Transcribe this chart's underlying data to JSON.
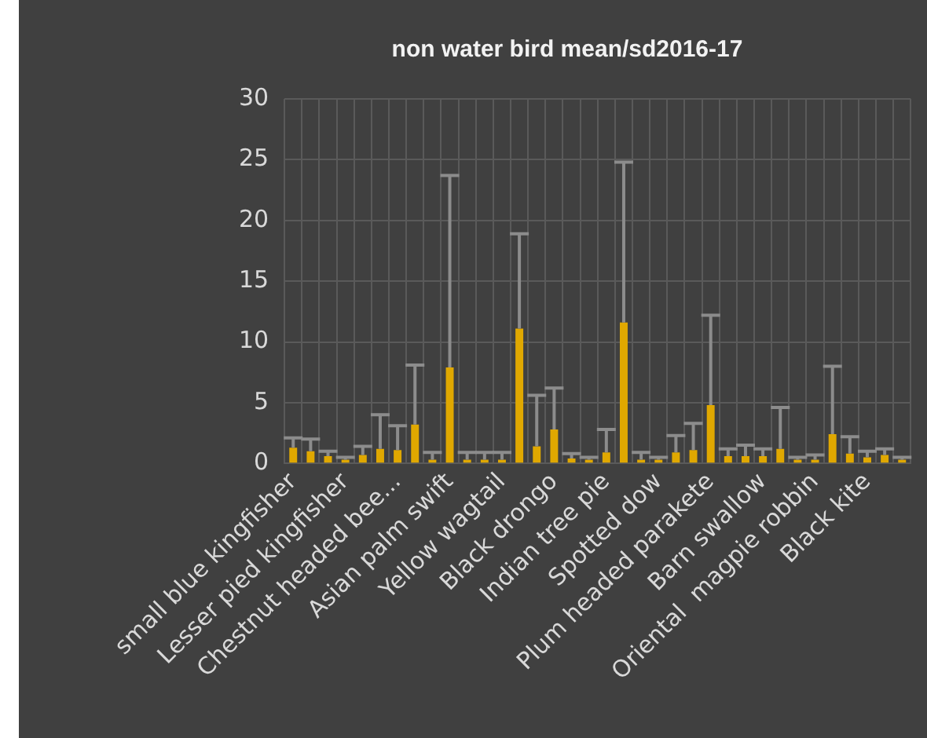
{
  "chart_data": {
    "type": "bar",
    "title": "non water bird mean/sd2016-17",
    "categories": [
      "small blue kingfisher",
      null,
      null,
      "Lesser pied kingfisher",
      null,
      null,
      "Chestnut headed bee...",
      null,
      null,
      "Asian palm swift",
      null,
      null,
      "Yellow wagtail",
      null,
      null,
      "Black drongo",
      null,
      null,
      "Indian tree pie",
      null,
      null,
      "Spotted dow",
      null,
      null,
      "Plum headed parakete",
      null,
      null,
      "Barn swallow",
      null,
      null,
      "Oriental  magpie robbin",
      null,
      null,
      "Black kite",
      null,
      null
    ],
    "values": [
      1.3,
      1.0,
      0.6,
      0.3,
      0.7,
      1.2,
      1.1,
      3.2,
      0.3,
      7.9,
      0.3,
      0.3,
      0.3,
      11.1,
      1.4,
      2.8,
      0.4,
      0.3,
      0.9,
      11.6,
      0.3,
      0.3,
      0.9,
      1.1,
      4.8,
      0.6,
      0.6,
      0.6,
      1.2,
      0.3,
      0.3,
      2.4,
      0.8,
      0.5,
      0.7,
      0.3
    ],
    "errors": [
      [
        1.3,
        2.1
      ],
      [
        1.0,
        2.0
      ],
      [
        0.6,
        1.0
      ],
      [
        0.3,
        0.5
      ],
      [
        0.7,
        1.4
      ],
      [
        1.2,
        4.0
      ],
      [
        1.1,
        3.1
      ],
      [
        3.2,
        8.1
      ],
      [
        0.3,
        0.9
      ],
      [
        7.9,
        23.7
      ],
      [
        0.3,
        0.9
      ],
      [
        0.3,
        0.9
      ],
      [
        0.3,
        0.9
      ],
      [
        11.1,
        18.9
      ],
      [
        1.4,
        5.6
      ],
      [
        2.8,
        6.2
      ],
      [
        0.4,
        0.8
      ],
      [
        0.3,
        0.5
      ],
      [
        0.9,
        2.8
      ],
      [
        11.6,
        24.8
      ],
      [
        0.3,
        0.9
      ],
      [
        0.3,
        0.5
      ],
      [
        0.9,
        2.3
      ],
      [
        1.1,
        3.3
      ],
      [
        4.8,
        12.2
      ],
      [
        0.6,
        1.2
      ],
      [
        0.6,
        1.5
      ],
      [
        0.6,
        1.2
      ],
      [
        1.2,
        4.6
      ],
      [
        0.3,
        0.5
      ],
      [
        0.3,
        0.7
      ],
      [
        2.4,
        8.0
      ],
      [
        0.8,
        2.2
      ],
      [
        0.5,
        1.0
      ],
      [
        0.7,
        1.2
      ],
      [
        0.3,
        0.5
      ]
    ],
    "color": "#e0a800",
    "ylim": [
      0,
      30
    ],
    "yticks": [
      0,
      5,
      10,
      15,
      20,
      25,
      30
    ],
    "grid": true
  }
}
